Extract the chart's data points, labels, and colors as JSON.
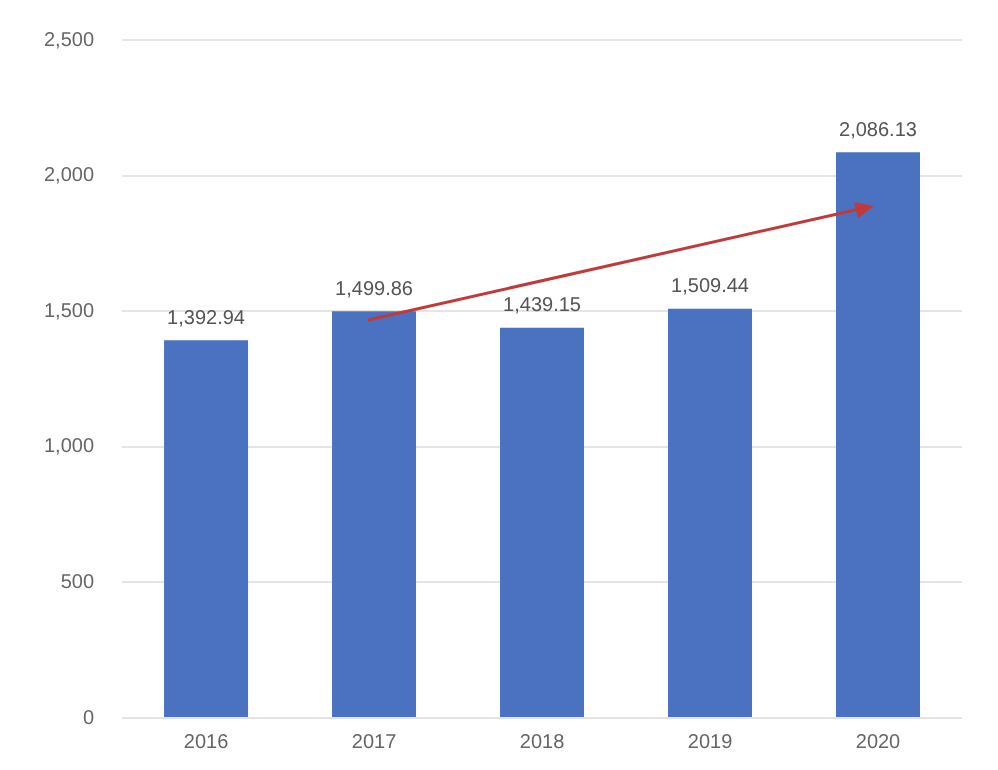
{
  "chart_data": {
    "type": "bar",
    "categories": [
      "2016",
      "2017",
      "2018",
      "2019",
      "2020"
    ],
    "values": [
      1392.94,
      1499.86,
      1439.15,
      1509.44,
      2086.13
    ],
    "value_labels": [
      "1,392.94",
      "1,499.86",
      "1,439.15",
      "1,509.44",
      "2,086.13"
    ],
    "color": "#4a72c0",
    "ylim": [
      0,
      2500
    ],
    "yticks": [
      {
        "value": 0,
        "label": "0"
      },
      {
        "value": 500,
        "label": "500"
      },
      {
        "value": 1000,
        "label": "1,000"
      },
      {
        "value": 1500,
        "label": "1,500"
      },
      {
        "value": 2000,
        "label": "2,000"
      },
      {
        "value": 2500,
        "label": "2,500"
      }
    ],
    "grid": "y",
    "legend": false
  }
}
